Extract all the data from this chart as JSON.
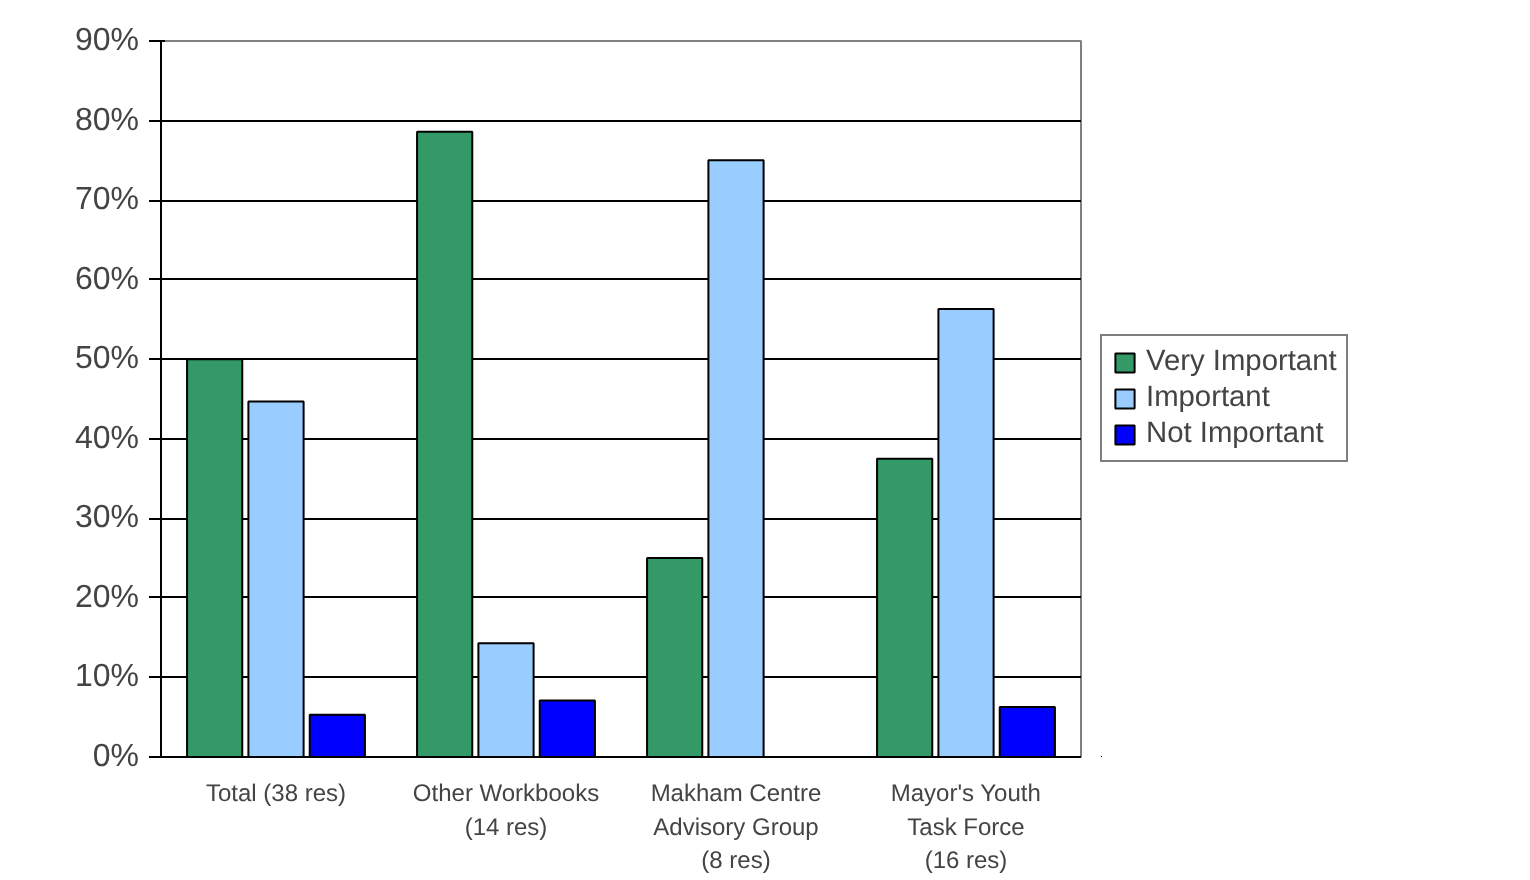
{
  "chart_data": {
    "type": "bar",
    "categories": [
      "Total (38 res)",
      "Other Workbooks (14 res)",
      "Makham Centre Advisory Group (8 res)",
      "Mayor's Youth Task Force (16 res)"
    ],
    "series": [
      {
        "name": "Very Important",
        "color": "#339966",
        "values": [
          50,
          78.6,
          25,
          37.5
        ]
      },
      {
        "name": "Important",
        "color": "#99ccff",
        "values": [
          44.7,
          14.3,
          75,
          56.3
        ]
      },
      {
        "name": "Not Important",
        "color": "#0000ff",
        "values": [
          5.3,
          7.1,
          0,
          6.3
        ]
      }
    ],
    "ylim": [
      0,
      90
    ],
    "yticks": [
      {
        "value": 0,
        "label": "0%"
      },
      {
        "value": 10,
        "label": "10%"
      },
      {
        "value": 20,
        "label": "20%"
      },
      {
        "value": 30,
        "label": "30%"
      },
      {
        "value": 40,
        "label": "40%"
      },
      {
        "value": 50,
        "label": "50%"
      },
      {
        "value": 60,
        "label": "60%"
      },
      {
        "value": 70,
        "label": "70%"
      },
      {
        "value": 80,
        "label": "80%"
      },
      {
        "value": 90,
        "label": "90%"
      }
    ],
    "grid": "y",
    "legend": "right"
  }
}
